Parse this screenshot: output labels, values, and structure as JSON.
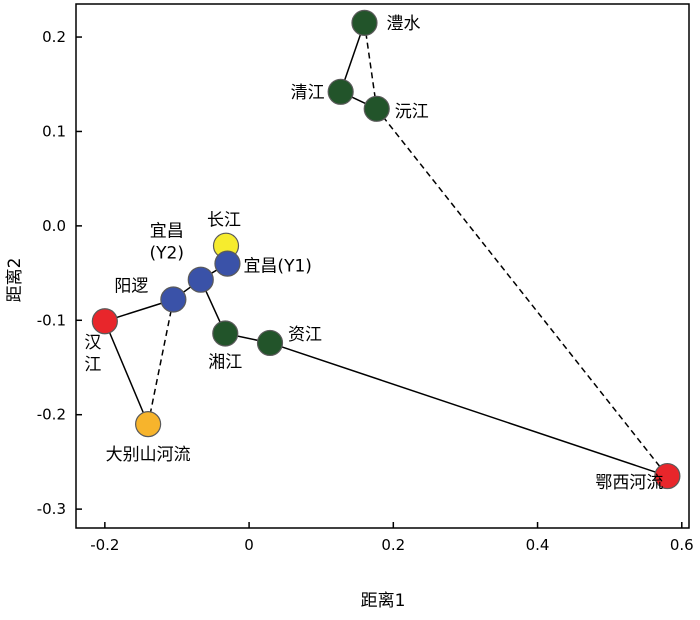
{
  "chart_data": {
    "type": "scatter",
    "title": "",
    "xlabel": "距离1",
    "ylabel": "距离2",
    "xlim": [
      -0.24,
      0.61
    ],
    "ylim": [
      -0.32,
      0.235
    ],
    "xticks": [
      -0.2,
      0,
      0.2,
      0.4,
      0.6
    ],
    "xtick_labels": [
      "-0.2",
      "0",
      "0.2",
      "0.4",
      "0.6"
    ],
    "yticks": [
      0.2,
      0.1,
      0.0,
      -0.1,
      -0.2,
      -0.3
    ],
    "ytick_labels": [
      "0.2",
      "0.1",
      "0.0",
      "-0.1",
      "-0.2",
      "-0.3"
    ],
    "grid": false,
    "colors": {
      "red": "#e8262b",
      "green": "#22542a",
      "blue": "#3a52a8",
      "yellow": "#f6ec2e",
      "orange": "#f7b42c"
    },
    "points": [
      {
        "id": "lishui",
        "label": "澧水",
        "x": 0.16,
        "y": 0.215,
        "color": "green"
      },
      {
        "id": "qingjiang",
        "label": "清江",
        "x": 0.127,
        "y": 0.142,
        "color": "green"
      },
      {
        "id": "yuanjiang",
        "label": "沅江",
        "x": 0.177,
        "y": 0.124,
        "color": "green"
      },
      {
        "id": "changjiang",
        "label": "长江",
        "x": -0.032,
        "y": -0.021,
        "color": "yellow"
      },
      {
        "id": "yichang_y1",
        "label": "宜昌(Y1)",
        "x": -0.03,
        "y": -0.04,
        "color": "blue"
      },
      {
        "id": "yichang_y2",
        "label": "宜昌\n(Y2)",
        "x": -0.067,
        "y": -0.057,
        "color": "blue"
      },
      {
        "id": "yangluo",
        "label": "阳逻",
        "x": -0.105,
        "y": -0.078,
        "color": "blue"
      },
      {
        "id": "hanjiang",
        "label": "汉\n江",
        "x": -0.2,
        "y": -0.101,
        "color": "red"
      },
      {
        "id": "xiangjiang",
        "label": "湘江",
        "x": -0.033,
        "y": -0.114,
        "color": "green"
      },
      {
        "id": "zijiang",
        "label": "资江",
        "x": 0.029,
        "y": -0.124,
        "color": "green"
      },
      {
        "id": "dabieshan",
        "label": "大别山河流",
        "x": -0.14,
        "y": -0.21,
        "color": "orange"
      },
      {
        "id": "exi",
        "label": "鄂西河流",
        "x": 0.58,
        "y": -0.265,
        "color": "red"
      }
    ],
    "lines": [
      {
        "from": "lishui",
        "to": "qingjiang",
        "style": "solid"
      },
      {
        "from": "qingjiang",
        "to": "yuanjiang",
        "style": "solid"
      },
      {
        "from": "lishui",
        "to": "yuanjiang",
        "style": "dashed"
      },
      {
        "from": "yuanjiang",
        "to": "exi",
        "style": "dashed"
      },
      {
        "from": "exi",
        "to": "zijiang",
        "style": "solid"
      },
      {
        "from": "zijiang",
        "to": "xiangjiang",
        "style": "solid"
      },
      {
        "from": "xiangjiang",
        "to": "yichang_y2",
        "style": "solid"
      },
      {
        "from": "yichang_y2",
        "to": "yichang_y1",
        "style": "solid"
      },
      {
        "from": "yichang_y2",
        "to": "yangluo",
        "style": "solid"
      },
      {
        "from": "yangluo",
        "to": "hanjiang",
        "style": "solid"
      },
      {
        "from": "hanjiang",
        "to": "dabieshan",
        "style": "solid"
      },
      {
        "from": "dabieshan",
        "to": "yangluo",
        "style": "dashed"
      }
    ]
  }
}
